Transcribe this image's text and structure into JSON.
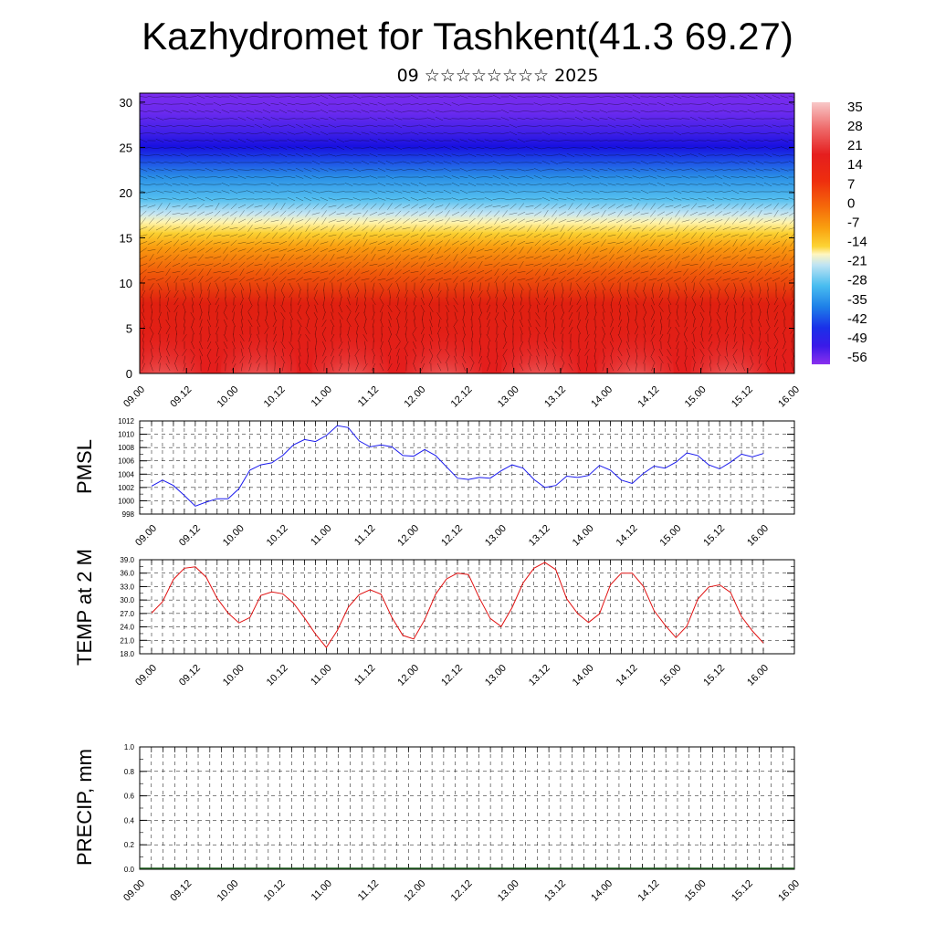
{
  "title": "Kazhydromet for Tashkent(41.3 69.27)",
  "subtitle": "09 ☆☆☆☆☆☆☆☆ 2025",
  "chart_data": [
    {
      "type": "heatmap",
      "panel": "cross-section",
      "y_ticks": [
        "0",
        "5",
        "10",
        "15",
        "20",
        "25",
        "30"
      ],
      "ylim": [
        0,
        31
      ],
      "x_ticks": [
        "09.00",
        "09.12",
        "10.00",
        "10.12",
        "11.00",
        "11.12",
        "12.00",
        "12.12",
        "13.00",
        "13.12",
        "14.00",
        "14.12",
        "15.00",
        "15.12",
        "16.00"
      ],
      "colorbar_labels": [
        "35",
        "28",
        "21",
        "14",
        "7",
        "0",
        "-7",
        "-14",
        "-21",
        "-28",
        "-35",
        "-42",
        "-49",
        "-56"
      ],
      "colorbar_colors": [
        "#f5b5b5",
        "#ee6a6a",
        "#e51e1e",
        "#ee3a0a",
        "#f56a0a",
        "#f99b0f",
        "#fbc61c",
        "#fff4a0",
        "#bfe3f2",
        "#49bdf0",
        "#1e88e8",
        "#1a40e8",
        "#2a18e8",
        "#7a2cee"
      ]
    },
    {
      "type": "line",
      "ylabel": "PMSL",
      "ylim": [
        998,
        1012
      ],
      "y_ticks": [
        "998",
        "1000",
        "1002",
        "1004",
        "1006",
        "1008",
        "1010",
        "1012"
      ],
      "x_ticks": [
        "09.00",
        "09.12",
        "10.00",
        "10.12",
        "11.00",
        "11.12",
        "12.00",
        "12.12",
        "13.00",
        "13.12",
        "14.00",
        "14.12",
        "15.00",
        "15.12",
        "16.00"
      ],
      "x_hours_step": 3,
      "series": [
        {
          "color": "#1a1aee",
          "values": [
            1002.2,
            1003.1,
            1002.3,
            1000.8,
            999.2,
            999.8,
            1000.3,
            1000.3,
            1001.8,
            1004.6,
            1005.4,
            1005.7,
            1006.8,
            1008.4,
            1009.2,
            1008.9,
            1009.8,
            1011.3,
            1011.0,
            1009.0,
            1008.1,
            1008.4,
            1008.1,
            1006.8,
            1006.7,
            1007.7,
            1006.8,
            1005.1,
            1003.4,
            1003.2,
            1003.5,
            1003.4,
            1004.5,
            1005.4,
            1004.9,
            1003.2,
            1002.0,
            1002.3,
            1003.7,
            1003.5,
            1003.8,
            1005.3,
            1004.6,
            1003.1,
            1002.6,
            1004.1,
            1005.2,
            1004.9,
            1005.8,
            1007.2,
            1006.8,
            1005.4,
            1004.8,
            1005.8,
            1007.0,
            1006.6,
            1007.1
          ]
        }
      ]
    },
    {
      "type": "line",
      "ylabel": "TEMP at 2 M",
      "ylim": [
        18,
        39
      ],
      "y_ticks": [
        "18.0",
        "21.0",
        "24.0",
        "27.0",
        "30.0",
        "33.0",
        "36.0",
        "39.0"
      ],
      "x_ticks": [
        "09.00",
        "09.12",
        "10.00",
        "10.12",
        "11.00",
        "11.12",
        "12.00",
        "12.12",
        "13.00",
        "13.12",
        "14.00",
        "14.12",
        "15.00",
        "15.12",
        "16.00"
      ],
      "x_hours_step": 3,
      "series": [
        {
          "color": "#e01010",
          "values": [
            27.1,
            29.6,
            34.6,
            37.1,
            37.4,
            35.1,
            30.4,
            27.1,
            24.9,
            26.1,
            31.0,
            31.8,
            31.4,
            29.3,
            26.0,
            22.4,
            19.4,
            23.2,
            28.4,
            31.2,
            32.3,
            31.3,
            26.1,
            22.1,
            21.3,
            25.6,
            31.3,
            34.7,
            36.0,
            35.7,
            30.5,
            25.9,
            24.1,
            28.3,
            33.8,
            37.1,
            38.4,
            36.8,
            30.3,
            27.0,
            25.0,
            26.9,
            33.4,
            36.0,
            36.0,
            33.1,
            27.6,
            24.4,
            21.6,
            24.2,
            30.2,
            32.9,
            33.4,
            31.7,
            26.3,
            23.1,
            20.4
          ]
        }
      ]
    },
    {
      "type": "bar",
      "ylabel": "PRECIP, mm",
      "ylim": [
        0,
        1
      ],
      "y_ticks": [
        "0.0",
        "0.2",
        "0.4",
        "0.6",
        "0.8",
        "1.0"
      ],
      "x_ticks": [
        "09.00",
        "09.12",
        "10.00",
        "10.12",
        "11.00",
        "11.12",
        "12.00",
        "12.12",
        "13.00",
        "13.12",
        "14.00",
        "14.12",
        "15.00",
        "15.12",
        "16.00"
      ],
      "values": [
        0,
        0,
        0,
        0,
        0,
        0,
        0,
        0,
        0,
        0,
        0,
        0,
        0,
        0,
        0,
        0,
        0,
        0,
        0,
        0,
        0,
        0,
        0,
        0,
        0,
        0,
        0,
        0,
        0,
        0,
        0,
        0,
        0,
        0,
        0,
        0,
        0,
        0,
        0,
        0,
        0,
        0,
        0,
        0,
        0,
        0,
        0,
        0,
        0,
        0,
        0,
        0,
        0,
        0,
        0,
        0,
        0
      ]
    }
  ]
}
